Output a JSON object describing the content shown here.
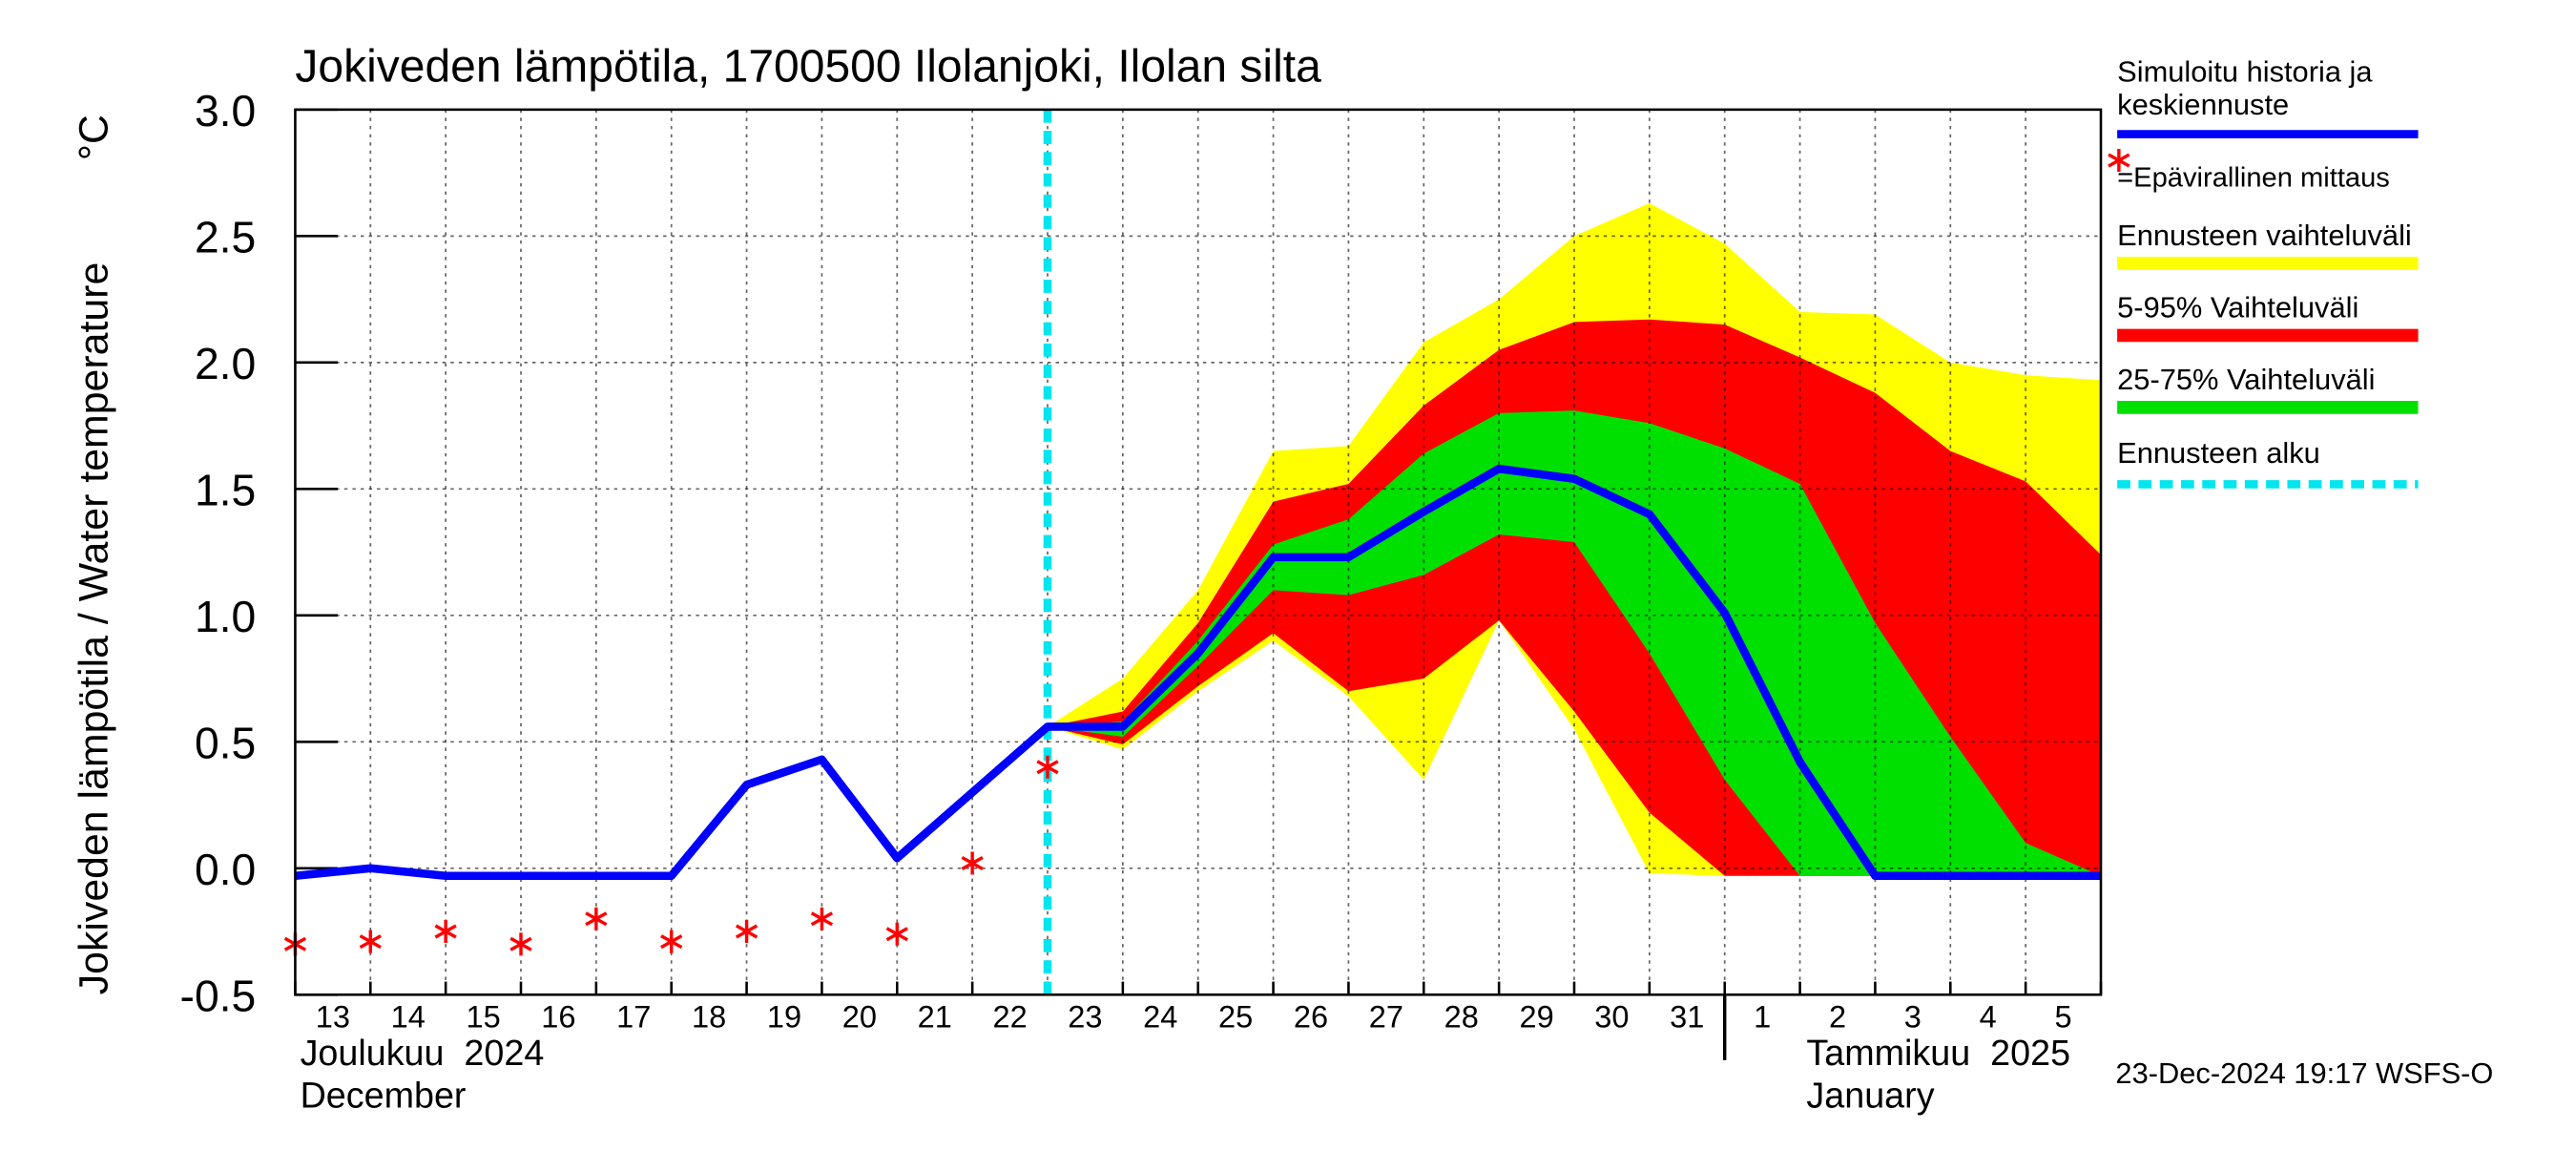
{
  "chart_data": {
    "type": "line",
    "title": "Jokiveden lämpötila, 1700500 Ilolanjoki, Ilolan silta",
    "ylabel": "Jokiveden lämpötila / Water temperature",
    "yunit": "°C",
    "categories": [
      "13",
      "14",
      "15",
      "16",
      "17",
      "18",
      "19",
      "20",
      "21",
      "22",
      "23",
      "24",
      "25",
      "26",
      "27",
      "28",
      "29",
      "30",
      "31",
      "1",
      "2",
      "3",
      "4",
      "5",
      null
    ],
    "month_labels": [
      "Joulukuu  2024",
      "December",
      "Tammikuu  2025",
      "January"
    ],
    "ylim": [
      -0.5,
      3.0
    ],
    "yticks": [
      -0.5,
      {
        "value": 0,
        "label": "0.0"
      },
      0.5,
      {
        "value": 1,
        "label": "1.0"
      },
      1.5,
      {
        "value": 2,
        "label": "2.0"
      },
      2.5,
      {
        "value": 3,
        "label": "3.0"
      }
    ],
    "grid": true,
    "bands": [
      {
        "name": "Ennusteen vaihteluväli",
        "color": "#ffff00",
        "high": [
          null,
          null,
          null,
          null,
          null,
          null,
          null,
          null,
          null,
          null,
          0.56,
          0.75,
          1.1,
          1.65,
          1.67,
          2.08,
          2.25,
          2.5,
          2.63,
          2.47,
          2.2,
          2.19,
          2.0,
          1.95,
          1.93
        ],
        "low": [
          null,
          null,
          null,
          null,
          null,
          null,
          null,
          null,
          null,
          null,
          0.56,
          0.47,
          0.7,
          0.9,
          0.68,
          0.35,
          0.98,
          0.55,
          -0.02,
          -0.03,
          -0.03,
          -0.03,
          -0.03,
          -0.03,
          -0.03
        ]
      },
      {
        "name": "5-95% Vaihteluväli",
        "color": "#ff0000",
        "high": [
          null,
          null,
          null,
          null,
          null,
          null,
          null,
          null,
          null,
          null,
          0.56,
          0.62,
          0.97,
          1.45,
          1.52,
          1.83,
          2.05,
          2.16,
          2.17,
          2.15,
          2.02,
          1.88,
          1.65,
          1.53,
          1.24
        ],
        "low": [
          null,
          null,
          null,
          null,
          null,
          null,
          null,
          null,
          null,
          null,
          0.56,
          0.49,
          0.72,
          0.93,
          0.7,
          0.75,
          0.98,
          0.62,
          0.22,
          -0.03,
          -0.03,
          -0.03,
          -0.03,
          -0.03,
          -0.03
        ]
      },
      {
        "name": "25-75% Vaihteluväli",
        "color": "#00e000",
        "high": [
          null,
          null,
          null,
          null,
          null,
          null,
          null,
          null,
          null,
          null,
          0.56,
          0.58,
          0.9,
          1.28,
          1.38,
          1.64,
          1.8,
          1.81,
          1.76,
          1.66,
          1.52,
          0.97,
          0.52,
          0.1,
          -0.03
        ],
        "low": [
          null,
          null,
          null,
          null,
          null,
          null,
          null,
          null,
          null,
          null,
          0.56,
          0.52,
          0.8,
          1.1,
          1.08,
          1.16,
          1.32,
          1.29,
          0.85,
          0.35,
          -0.03,
          -0.03,
          -0.03,
          -0.03,
          -0.03
        ]
      }
    ],
    "series": [
      {
        "name": "Simuloitu historia ja keskiennuste",
        "color": "#0000ff",
        "values": [
          -0.03,
          0.0,
          -0.03,
          -0.03,
          -0.03,
          -0.03,
          0.33,
          0.43,
          0.04,
          0.3,
          0.56,
          0.56,
          0.85,
          1.23,
          1.23,
          1.41,
          1.58,
          1.54,
          1.4,
          1.01,
          0.42,
          -0.03,
          -0.03,
          -0.03,
          -0.03
        ]
      },
      {
        "name": "=Epävirallinen mittaus",
        "color": "#ff0000",
        "marker": "star",
        "values": [
          -0.3,
          -0.29,
          -0.25,
          -0.3,
          -0.2,
          -0.29,
          -0.25,
          -0.2,
          -0.26,
          0.02,
          0.4,
          null,
          null,
          null,
          null,
          null,
          null,
          null,
          null,
          null,
          null,
          null,
          null,
          null,
          null
        ]
      }
    ],
    "forecast_start": {
      "label": "Ennusteen alku",
      "category": "23",
      "color": "#00e5ee"
    },
    "footer": "23-Dec-2024 19:17 WSFS-O"
  }
}
